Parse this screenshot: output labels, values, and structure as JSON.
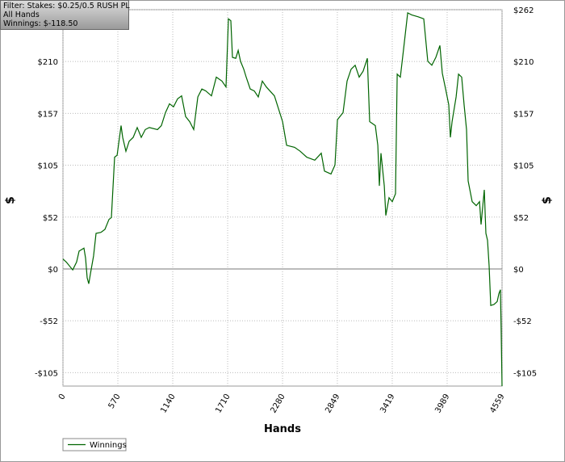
{
  "chart_data": {
    "type": "line",
    "title_lines": [
      "Filter: Stakes: $0.25/0.5 RUSH PL",
      "All Hands",
      "Winnings: $-118.50"
    ],
    "x_label": "Hands",
    "y_label": "$",
    "x": [
      0,
      34,
      101,
      142,
      168,
      218,
      235,
      251,
      268,
      285,
      318,
      344,
      394,
      436,
      478,
      503,
      536,
      562,
      603,
      620,
      654,
      687,
      729,
      771,
      813,
      855,
      897,
      981,
      1022,
      1064,
      1106,
      1148,
      1190,
      1232,
      1274,
      1316,
      1358,
      1400,
      1442,
      1483,
      1542,
      1592,
      1651,
      1693,
      1718,
      1743,
      1760,
      1794,
      1819,
      1844,
      1877,
      1902,
      1944,
      1986,
      2028,
      2070,
      2112,
      2196,
      2280,
      2322,
      2405,
      2464,
      2531,
      2615,
      2682,
      2715,
      2783,
      2824,
      2850,
      2908,
      2950,
      2992,
      3034,
      3076,
      3117,
      3160,
      3185,
      3243,
      3269,
      3285,
      3302,
      3336,
      3352,
      3386,
      3419,
      3453,
      3470,
      3503,
      3537,
      3579,
      3620,
      3688,
      3746,
      3788,
      3830,
      3872,
      3914,
      3939,
      3973,
      4006,
      4023,
      4040,
      4082,
      4107,
      4140,
      4165,
      4190,
      4207,
      4249,
      4291,
      4325,
      4341,
      4375,
      4391,
      4408,
      4425,
      4442,
      4475,
      4509,
      4526,
      4542,
      4550,
      4559
    ],
    "series": [
      {
        "name": "Winnings",
        "color": "#006400",
        "values": [
          10,
          7,
          -1,
          7,
          18,
          21,
          11,
          -9,
          -15,
          -5,
          13,
          36,
          37,
          40,
          50,
          52,
          113,
          115,
          145,
          133,
          119,
          129,
          133,
          143,
          133,
          141,
          143,
          141,
          145,
          158,
          167,
          164,
          172,
          175,
          154,
          149,
          141,
          174,
          182,
          180,
          175,
          194,
          190,
          184,
          253,
          251,
          214,
          213,
          221,
          210,
          202,
          194,
          182,
          180,
          174,
          190,
          184,
          175,
          149,
          125,
          123,
          119,
          113,
          110,
          117,
          99,
          96,
          105,
          151,
          158,
          190,
          202,
          206,
          194,
          200,
          213,
          149,
          145,
          125,
          84,
          117,
          84,
          54,
          72,
          68,
          76,
          197,
          194,
          223,
          259,
          257,
          255,
          253,
          210,
          206,
          214,
          226,
          198,
          182,
          166,
          133,
          149,
          174,
          197,
          194,
          166,
          141,
          89,
          68,
          64,
          68,
          45,
          80,
          36,
          29,
          3,
          -37,
          -36,
          -33,
          -25,
          -21,
          -62,
          -118.5
        ]
      }
    ],
    "xlim": [
      0,
      4559
    ],
    "ylim": [
      -118.5,
      262.2
    ],
    "xticks": [
      0,
      570,
      1140,
      1710,
      2280,
      2849,
      3419,
      3989,
      4559
    ],
    "yticks": [
      {
        "value": 262.2,
        "label": "$262"
      },
      {
        "value": 209.8,
        "label": "$210"
      },
      {
        "value": 157.3,
        "label": "$157"
      },
      {
        "value": 104.9,
        "label": "$105"
      },
      {
        "value": 52.4,
        "label": "$52"
      },
      {
        "value": 0,
        "label": "$0"
      },
      {
        "value": -52.4,
        "label": "-$52"
      },
      {
        "value": -104.9,
        "label": "-$105"
      }
    ],
    "grid": true
  }
}
